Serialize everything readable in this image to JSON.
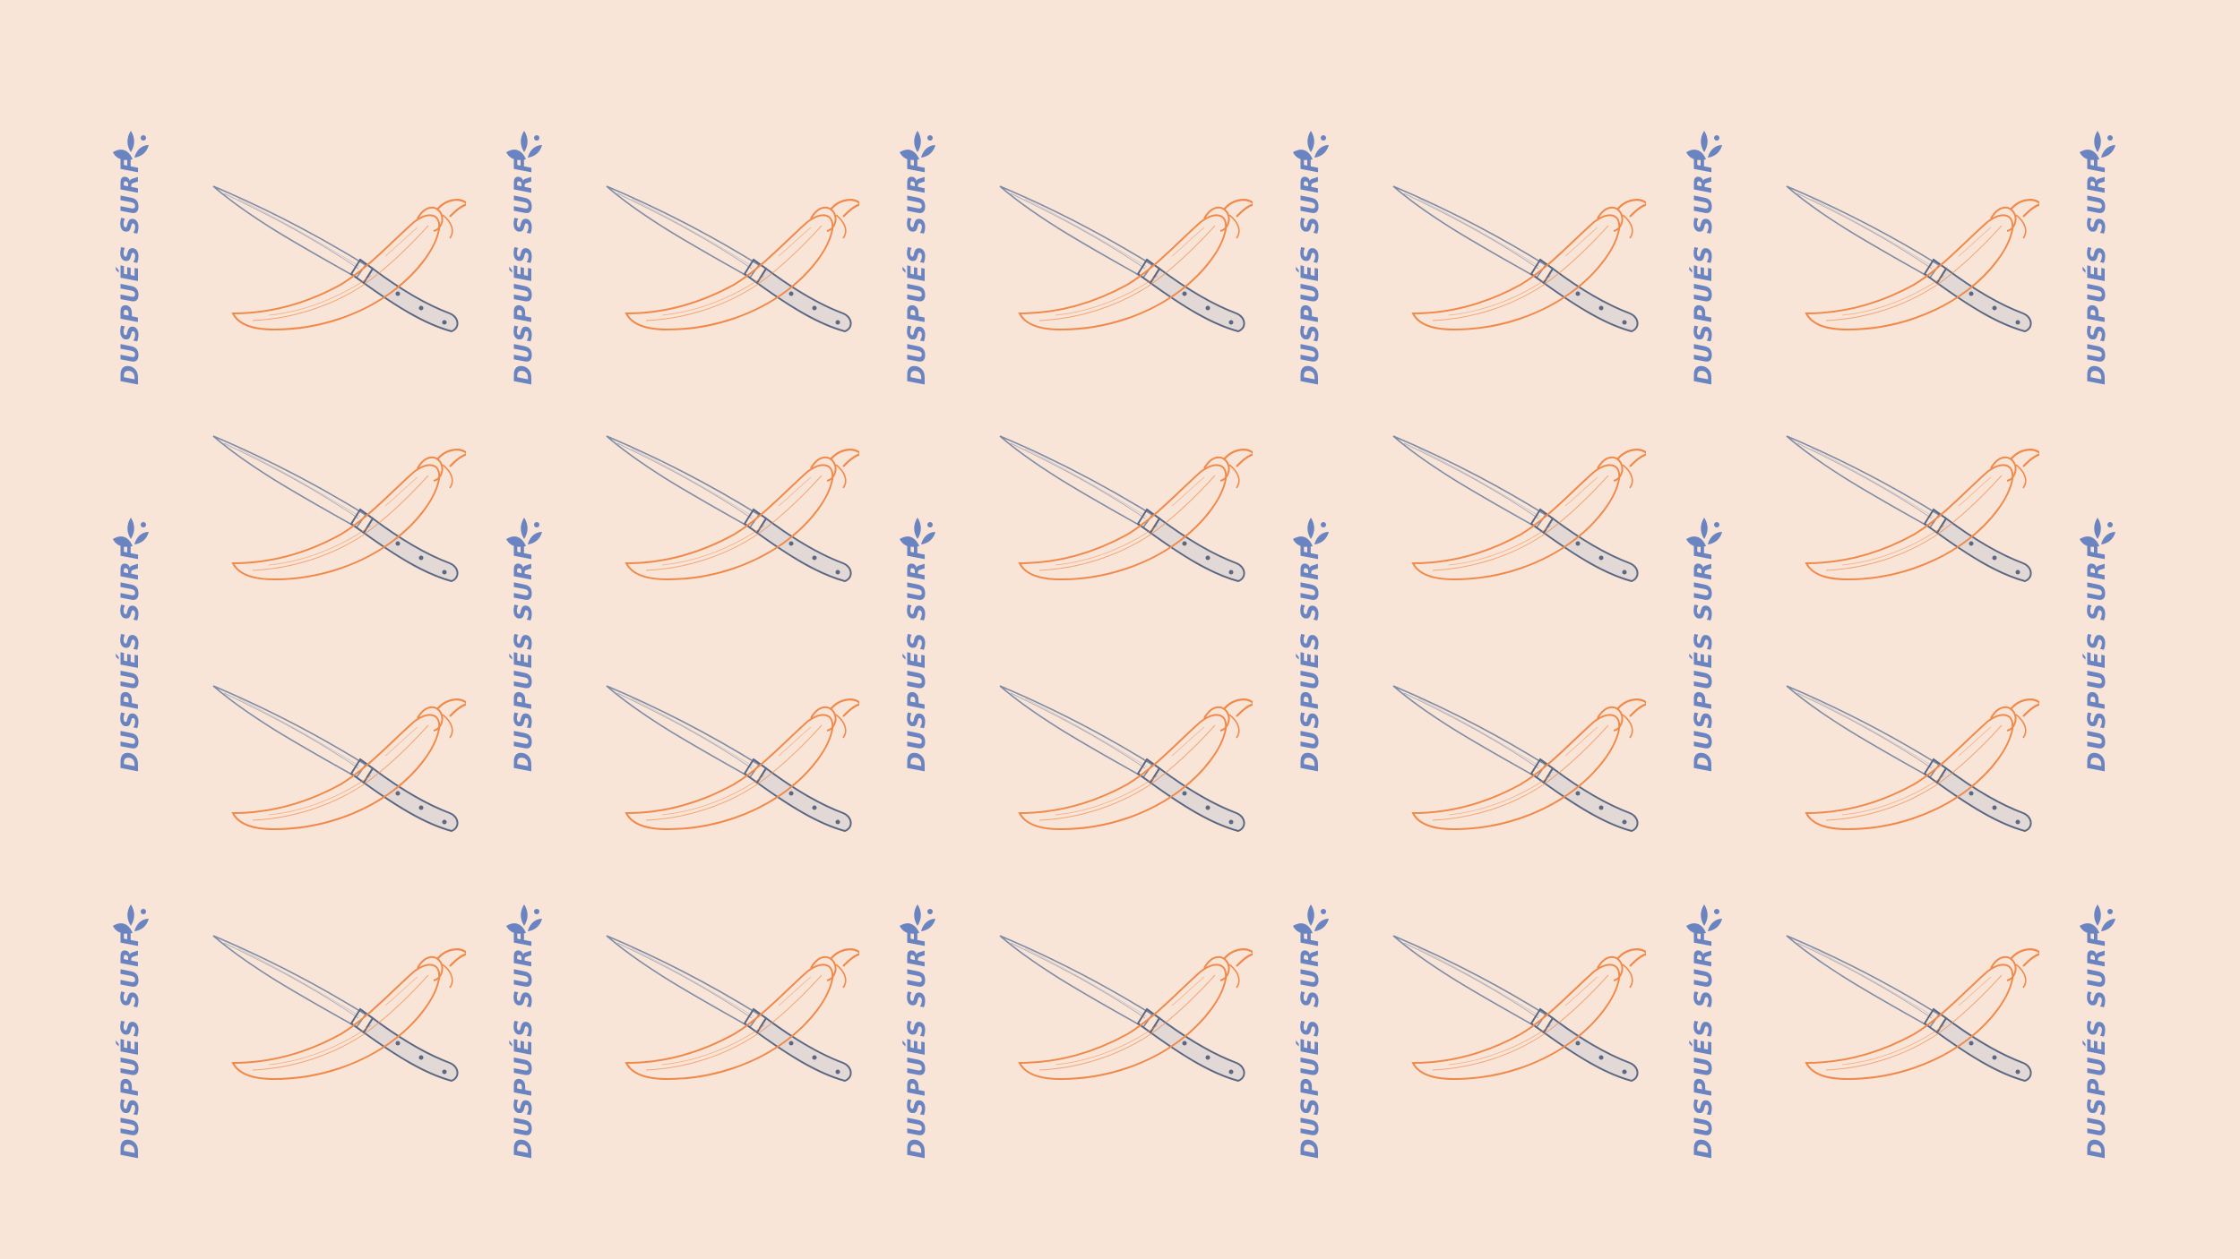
{
  "brand": {
    "wordmark": "DUSPUÉS SURF"
  },
  "icons": {
    "brand_mark": "splash-icon",
    "illustration": "knife-and-chili-pepper-icon"
  },
  "colors": {
    "background": "#F9E5D8",
    "brand_blue": "#6A84C2",
    "pepper_orange": "#F08A4B",
    "knife_steel": "#7E8CA6",
    "knife_handle": "#5B6883"
  }
}
